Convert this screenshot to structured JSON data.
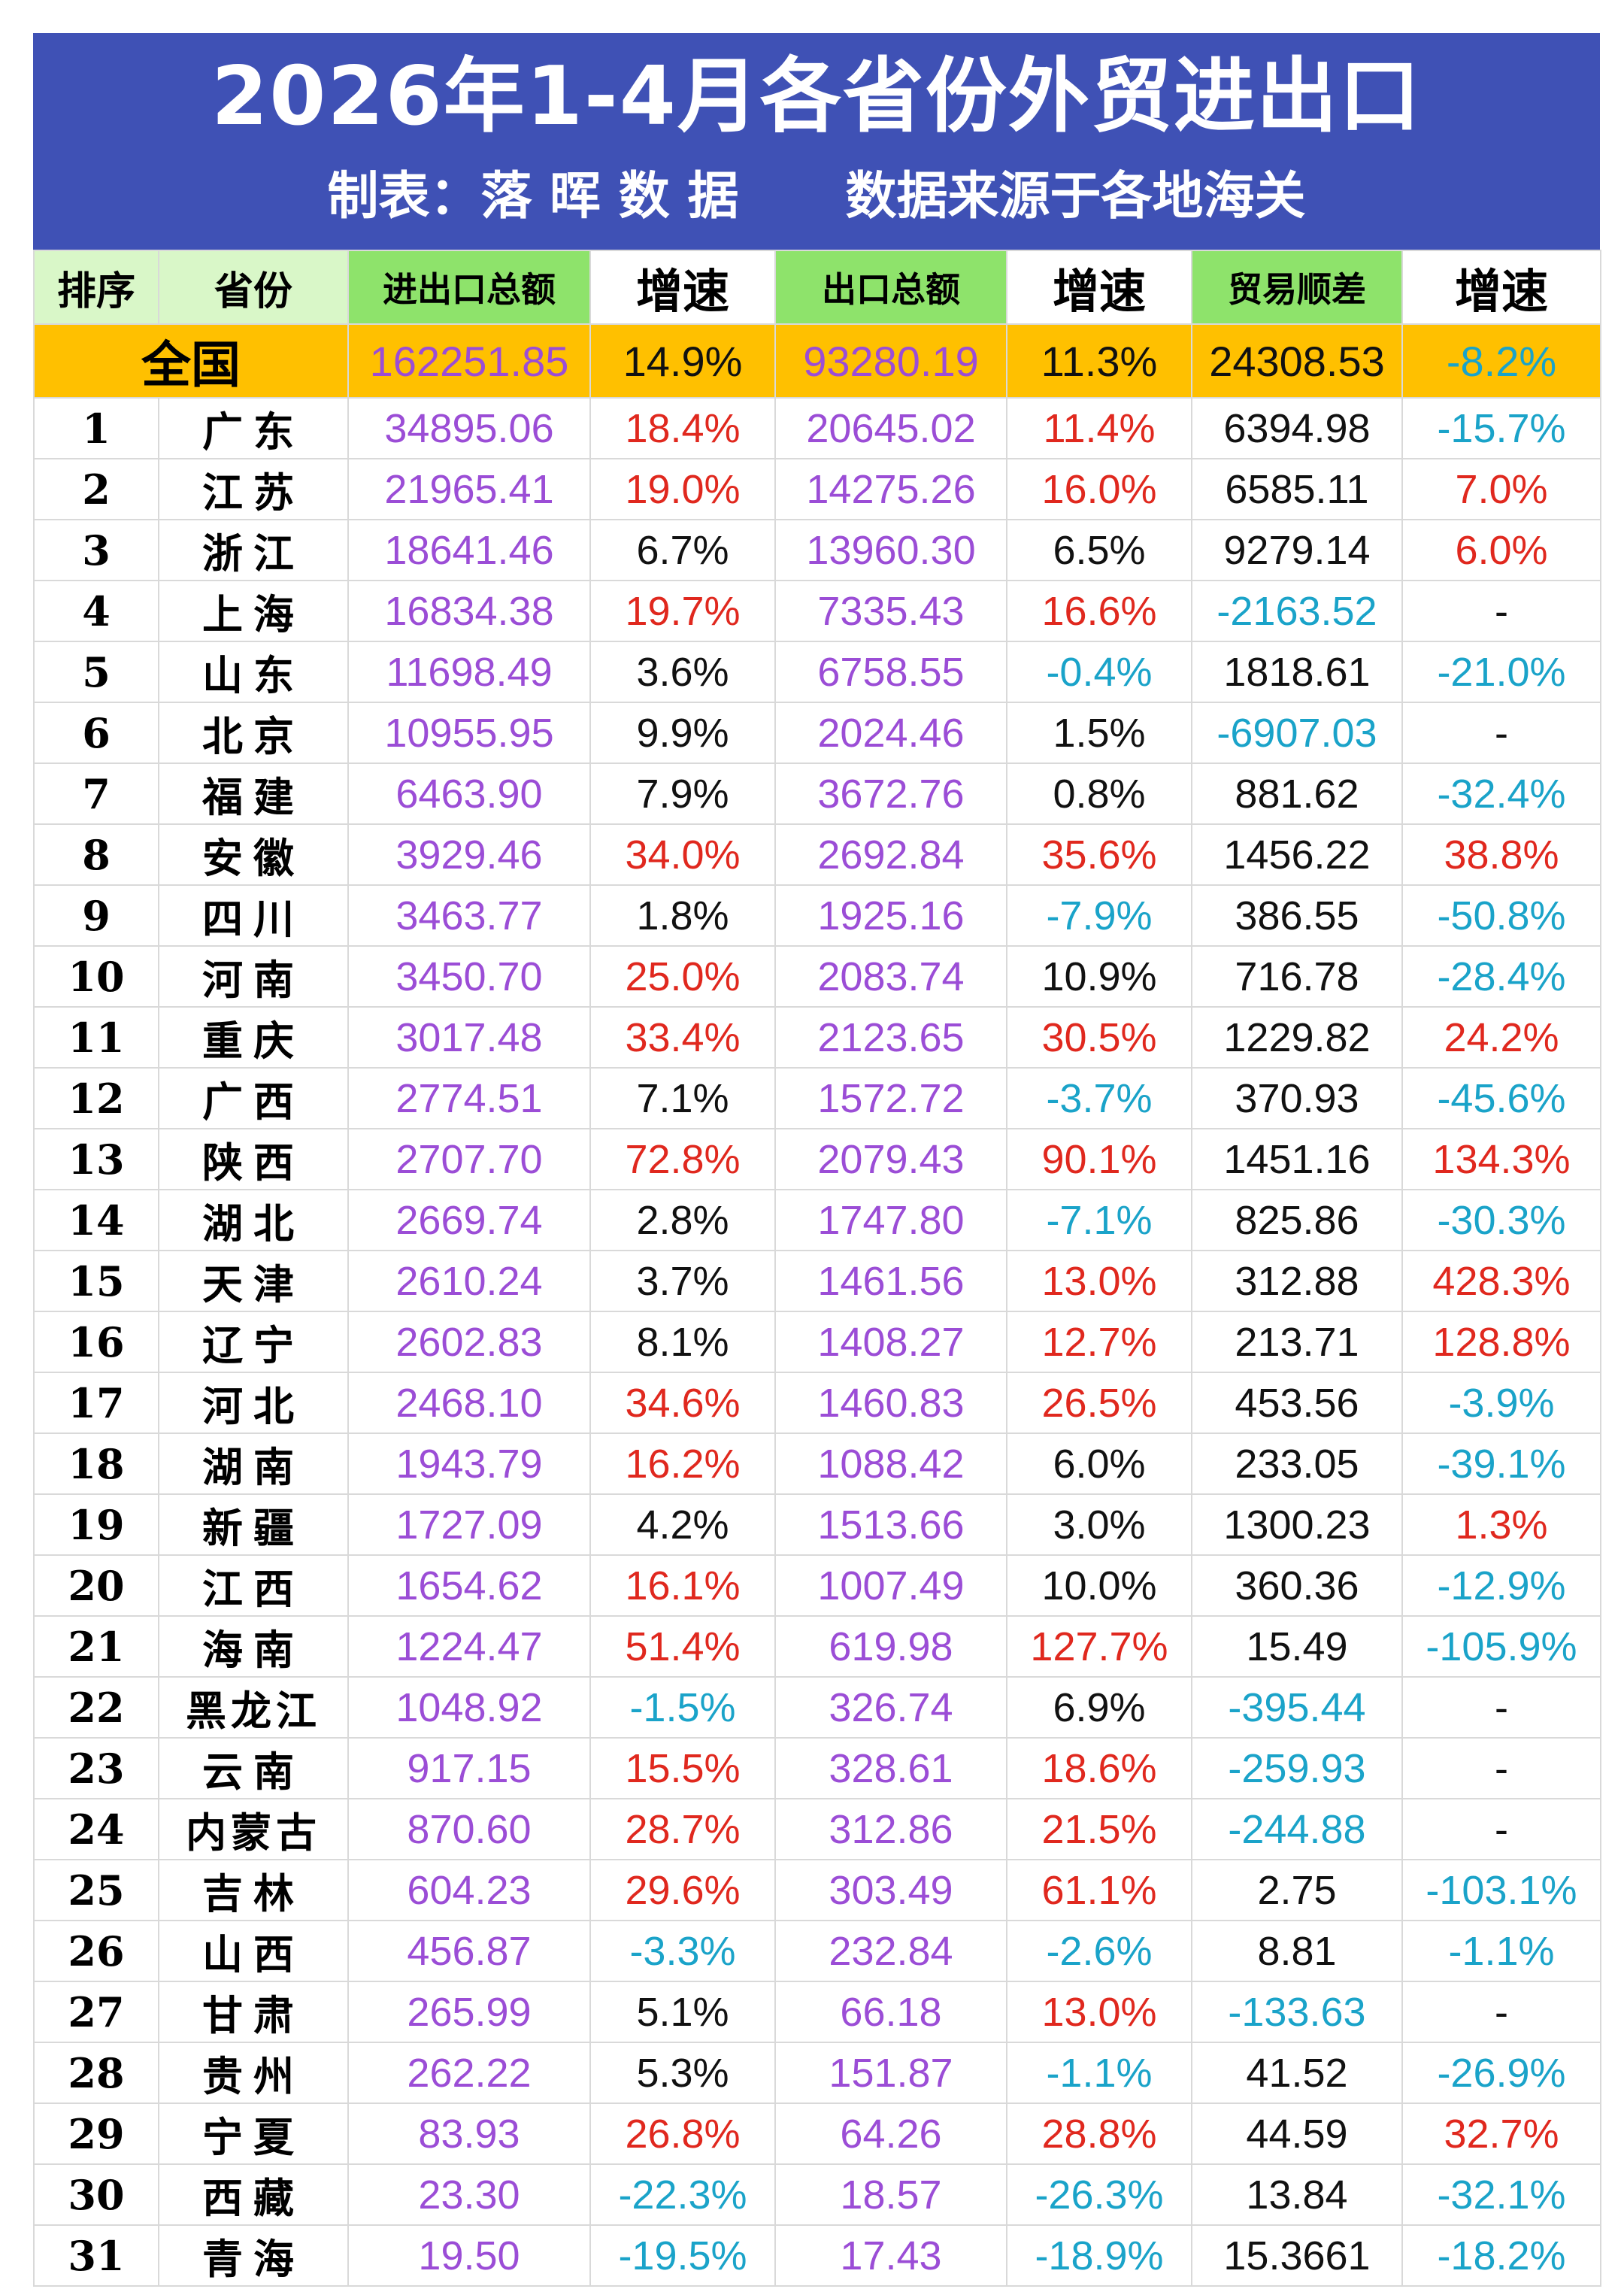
{
  "title": "2026年1-4月各省份外贸进出口",
  "subtitle": "制表：落 晖 数 据      数据来源于各地海关",
  "colors": {
    "banner": "#3f51b5",
    "header_green": "#8ee36b",
    "header_light": "#d9f7c8",
    "national_row": "#ffc000",
    "purple_values": "#9b4dd6",
    "positive": "#e0281e",
    "negative": "#1aa3c9"
  },
  "headers": {
    "rank": "排序",
    "province": "省份",
    "total": "进出口总额",
    "growth1": "增速",
    "export": "出口总额",
    "growth2": "增速",
    "balance": "贸易顺差",
    "growth3": "增速"
  },
  "national": {
    "name": "全国",
    "total": "162251.85",
    "g1": "14.9%",
    "export": "93280.19",
    "g2": "11.3%",
    "balance": "24308.53",
    "g3": "-8.2%"
  },
  "rows": [
    {
      "rank": "1",
      "name": "广东",
      "total": "34895.06",
      "g1": "18.4%",
      "export": "20645.02",
      "g2": "11.4%",
      "balance": "6394.98",
      "g3": "-15.7%"
    },
    {
      "rank": "2",
      "name": "江苏",
      "total": "21965.41",
      "g1": "19.0%",
      "export": "14275.26",
      "g2": "16.0%",
      "balance": "6585.11",
      "g3": "7.0%"
    },
    {
      "rank": "3",
      "name": "浙江",
      "total": "18641.46",
      "g1": "6.7%",
      "export": "13960.30",
      "g2": "6.5%",
      "balance": "9279.14",
      "g3": "6.0%"
    },
    {
      "rank": "4",
      "name": "上海",
      "total": "16834.38",
      "g1": "19.7%",
      "export": "7335.43",
      "g2": "16.6%",
      "balance": "-2163.52",
      "g3": "-"
    },
    {
      "rank": "5",
      "name": "山东",
      "total": "11698.49",
      "g1": "3.6%",
      "export": "6758.55",
      "g2": "-0.4%",
      "balance": "1818.61",
      "g3": "-21.0%"
    },
    {
      "rank": "6",
      "name": "北京",
      "total": "10955.95",
      "g1": "9.9%",
      "export": "2024.46",
      "g2": "1.5%",
      "balance": "-6907.03",
      "g3": "-"
    },
    {
      "rank": "7",
      "name": "福建",
      "total": "6463.90",
      "g1": "7.9%",
      "export": "3672.76",
      "g2": "0.8%",
      "balance": "881.62",
      "g3": "-32.4%"
    },
    {
      "rank": "8",
      "name": "安徽",
      "total": "3929.46",
      "g1": "34.0%",
      "export": "2692.84",
      "g2": "35.6%",
      "balance": "1456.22",
      "g3": "38.8%"
    },
    {
      "rank": "9",
      "name": "四川",
      "total": "3463.77",
      "g1": "1.8%",
      "export": "1925.16",
      "g2": "-7.9%",
      "balance": "386.55",
      "g3": "-50.8%"
    },
    {
      "rank": "10",
      "name": "河南",
      "total": "3450.70",
      "g1": "25.0%",
      "export": "2083.74",
      "g2": "10.9%",
      "balance": "716.78",
      "g3": "-28.4%"
    },
    {
      "rank": "11",
      "name": "重庆",
      "total": "3017.48",
      "g1": "33.4%",
      "export": "2123.65",
      "g2": "30.5%",
      "balance": "1229.82",
      "g3": "24.2%"
    },
    {
      "rank": "12",
      "name": "广西",
      "total": "2774.51",
      "g1": "7.1%",
      "export": "1572.72",
      "g2": "-3.7%",
      "balance": "370.93",
      "g3": "-45.6%"
    },
    {
      "rank": "13",
      "name": "陕西",
      "total": "2707.70",
      "g1": "72.8%",
      "export": "2079.43",
      "g2": "90.1%",
      "balance": "1451.16",
      "g3": "134.3%"
    },
    {
      "rank": "14",
      "name": "湖北",
      "total": "2669.74",
      "g1": "2.8%",
      "export": "1747.80",
      "g2": "-7.1%",
      "balance": "825.86",
      "g3": "-30.3%"
    },
    {
      "rank": "15",
      "name": "天津",
      "total": "2610.24",
      "g1": "3.7%",
      "export": "1461.56",
      "g2": "13.0%",
      "balance": "312.88",
      "g3": "428.3%"
    },
    {
      "rank": "16",
      "name": "辽宁",
      "total": "2602.83",
      "g1": "8.1%",
      "export": "1408.27",
      "g2": "12.7%",
      "balance": "213.71",
      "g3": "128.8%"
    },
    {
      "rank": "17",
      "name": "河北",
      "total": "2468.10",
      "g1": "34.6%",
      "export": "1460.83",
      "g2": "26.5%",
      "balance": "453.56",
      "g3": "-3.9%"
    },
    {
      "rank": "18",
      "name": "湖南",
      "total": "1943.79",
      "g1": "16.2%",
      "export": "1088.42",
      "g2": "6.0%",
      "balance": "233.05",
      "g3": "-39.1%"
    },
    {
      "rank": "19",
      "name": "新疆",
      "total": "1727.09",
      "g1": "4.2%",
      "export": "1513.66",
      "g2": "3.0%",
      "balance": "1300.23",
      "g3": "1.3%"
    },
    {
      "rank": "20",
      "name": "江西",
      "total": "1654.62",
      "g1": "16.1%",
      "export": "1007.49",
      "g2": "10.0%",
      "balance": "360.36",
      "g3": "-12.9%"
    },
    {
      "rank": "21",
      "name": "海南",
      "total": "1224.47",
      "g1": "51.4%",
      "export": "619.98",
      "g2": "127.7%",
      "balance": "15.49",
      "g3": "-105.9%"
    },
    {
      "rank": "22",
      "name": "黑龙江",
      "total": "1048.92",
      "g1": "-1.5%",
      "export": "326.74",
      "g2": "6.9%",
      "balance": "-395.44",
      "g3": "-"
    },
    {
      "rank": "23",
      "name": "云南",
      "total": "917.15",
      "g1": "15.5%",
      "export": "328.61",
      "g2": "18.6%",
      "balance": "-259.93",
      "g3": "-"
    },
    {
      "rank": "24",
      "name": "内蒙古",
      "total": "870.60",
      "g1": "28.7%",
      "export": "312.86",
      "g2": "21.5%",
      "balance": "-244.88",
      "g3": "-"
    },
    {
      "rank": "25",
      "name": "吉林",
      "total": "604.23",
      "g1": "29.6%",
      "export": "303.49",
      "g2": "61.1%",
      "balance": "2.75",
      "g3": "-103.1%"
    },
    {
      "rank": "26",
      "name": "山西",
      "total": "456.87",
      "g1": "-3.3%",
      "export": "232.84",
      "g2": "-2.6%",
      "balance": "8.81",
      "g3": "-1.1%"
    },
    {
      "rank": "27",
      "name": "甘肃",
      "total": "265.99",
      "g1": "5.1%",
      "export": "66.18",
      "g2": "13.0%",
      "balance": "-133.63",
      "g3": "-"
    },
    {
      "rank": "28",
      "name": "贵州",
      "total": "262.22",
      "g1": "5.3%",
      "export": "151.87",
      "g2": "-1.1%",
      "balance": "41.52",
      "g3": "-26.9%"
    },
    {
      "rank": "29",
      "name": "宁夏",
      "total": "83.93",
      "g1": "26.8%",
      "export": "64.26",
      "g2": "28.8%",
      "balance": "44.59",
      "g3": "32.7%"
    },
    {
      "rank": "30",
      "name": "西藏",
      "total": "23.30",
      "g1": "-22.3%",
      "export": "18.57",
      "g2": "-26.3%",
      "balance": "13.84",
      "g3": "-32.1%"
    },
    {
      "rank": "31",
      "name": "青海",
      "total": "19.50",
      "g1": "-19.5%",
      "export": "17.43",
      "g2": "-18.9%",
      "balance": "15.3661",
      "g3": "-18.2%"
    }
  ]
}
